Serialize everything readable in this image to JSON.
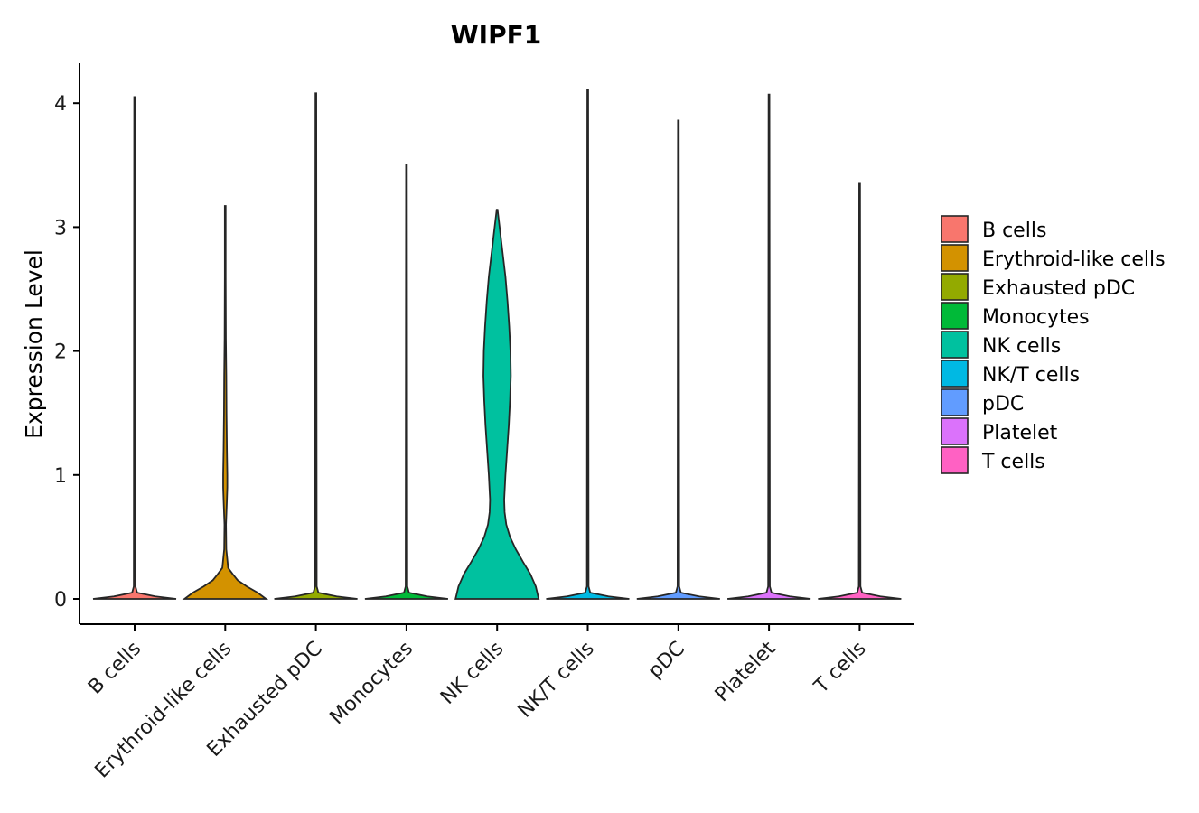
{
  "chart_data": {
    "type": "violin",
    "title": "WIPF1",
    "xlabel": "",
    "ylabel": "Expression Level",
    "ylim": [
      -0.2,
      4.3
    ],
    "yticks": [
      0,
      1,
      2,
      3,
      4
    ],
    "categories": [
      "B cells",
      "Erythroid-like cells",
      "Exhausted pDC",
      "Monocytes",
      "NK cells",
      "NK/T cells",
      "pDC",
      "Platelet",
      "T cells"
    ],
    "series": [
      {
        "name": "B cells",
        "color": "#F8766D",
        "max": 4.05,
        "profile": [
          [
            0,
            1.0
          ],
          [
            0.02,
            0.5
          ],
          [
            0.05,
            0.06
          ],
          [
            0.1,
            0.02
          ],
          [
            4.05,
            0.01
          ]
        ]
      },
      {
        "name": "Erythroid-like cells",
        "color": "#D39200",
        "max": 3.17,
        "profile": [
          [
            0,
            0.98
          ],
          [
            0.05,
            0.78
          ],
          [
            0.1,
            0.52
          ],
          [
            0.15,
            0.3
          ],
          [
            0.2,
            0.18
          ],
          [
            0.25,
            0.07
          ],
          [
            0.4,
            0.025
          ],
          [
            0.6,
            0.018
          ],
          [
            0.8,
            0.04
          ],
          [
            0.9,
            0.05
          ],
          [
            1.0,
            0.05
          ],
          [
            1.2,
            0.04
          ],
          [
            1.5,
            0.03
          ],
          [
            1.8,
            0.025
          ],
          [
            2.1,
            0.015
          ],
          [
            2.6,
            0.01
          ],
          [
            3.17,
            0.01
          ]
        ]
      },
      {
        "name": "Exhausted pDC",
        "color": "#93AA00",
        "max": 4.08,
        "profile": [
          [
            0,
            1.0
          ],
          [
            0.02,
            0.5
          ],
          [
            0.05,
            0.06
          ],
          [
            0.1,
            0.02
          ],
          [
            4.08,
            0.01
          ]
        ]
      },
      {
        "name": "Monocytes",
        "color": "#00BA38",
        "max": 3.5,
        "profile": [
          [
            0,
            1.0
          ],
          [
            0.02,
            0.5
          ],
          [
            0.05,
            0.06
          ],
          [
            0.1,
            0.02
          ],
          [
            3.5,
            0.01
          ]
        ]
      },
      {
        "name": "NK cells",
        "color": "#00C19F",
        "max": 3.14,
        "profile": [
          [
            0,
            1.0
          ],
          [
            0.1,
            0.93
          ],
          [
            0.2,
            0.8
          ],
          [
            0.3,
            0.62
          ],
          [
            0.4,
            0.45
          ],
          [
            0.5,
            0.31
          ],
          [
            0.6,
            0.22
          ],
          [
            0.7,
            0.18
          ],
          [
            0.8,
            0.17
          ],
          [
            1.0,
            0.2
          ],
          [
            1.2,
            0.24
          ],
          [
            1.4,
            0.28
          ],
          [
            1.6,
            0.31
          ],
          [
            1.8,
            0.33
          ],
          [
            2.0,
            0.32
          ],
          [
            2.2,
            0.29
          ],
          [
            2.4,
            0.25
          ],
          [
            2.6,
            0.2
          ],
          [
            2.8,
            0.13
          ],
          [
            3.0,
            0.06
          ],
          [
            3.14,
            0.01
          ]
        ]
      },
      {
        "name": "NK/T cells",
        "color": "#00B9E3",
        "max": 4.11,
        "profile": [
          [
            0,
            1.0
          ],
          [
            0.02,
            0.5
          ],
          [
            0.05,
            0.06
          ],
          [
            0.1,
            0.02
          ],
          [
            4.11,
            0.01
          ]
        ]
      },
      {
        "name": "pDC",
        "color": "#619CFF",
        "max": 3.86,
        "profile": [
          [
            0,
            1.0
          ],
          [
            0.02,
            0.5
          ],
          [
            0.05,
            0.06
          ],
          [
            0.1,
            0.02
          ],
          [
            3.86,
            0.01
          ]
        ]
      },
      {
        "name": "Platelet",
        "color": "#DB72FB",
        "max": 4.07,
        "profile": [
          [
            0,
            1.0
          ],
          [
            0.02,
            0.5
          ],
          [
            0.05,
            0.06
          ],
          [
            0.1,
            0.02
          ],
          [
            4.07,
            0.01
          ]
        ]
      },
      {
        "name": "T cells",
        "color": "#FF61C3",
        "max": 3.35,
        "profile": [
          [
            0,
            1.0
          ],
          [
            0.02,
            0.5
          ],
          [
            0.05,
            0.06
          ],
          [
            0.1,
            0.02
          ],
          [
            3.35,
            0.01
          ]
        ]
      }
    ],
    "legend": {
      "position": "right",
      "entries": [
        "B cells",
        "Erythroid-like cells",
        "Exhausted pDC",
        "Monocytes",
        "NK cells",
        "NK/T cells",
        "pDC",
        "Platelet",
        "T cells"
      ]
    },
    "grid": false
  }
}
